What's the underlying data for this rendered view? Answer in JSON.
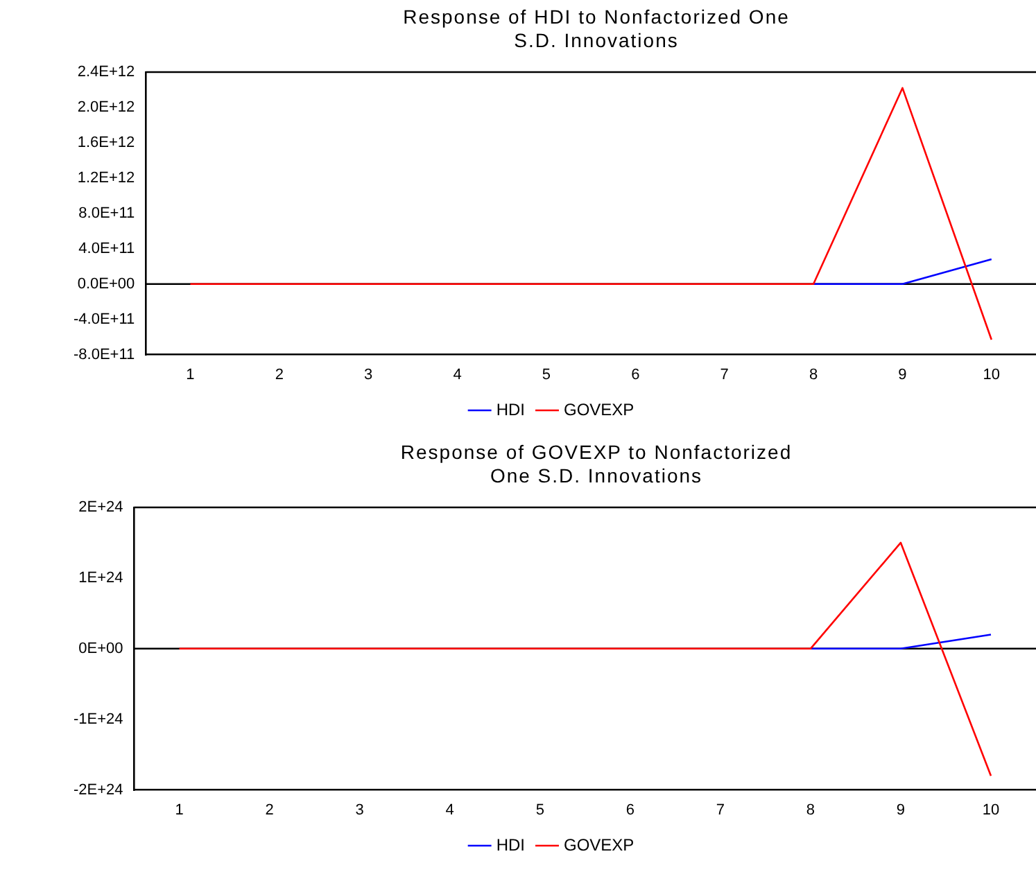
{
  "chart_data": [
    {
      "type": "line",
      "title": "Response of HDI to Nonfactorized One S.D. Innovations",
      "categories": [
        "1",
        "2",
        "3",
        "4",
        "5",
        "6",
        "7",
        "8",
        "9",
        "10"
      ],
      "series": [
        {
          "name": "HDI",
          "color": "#0000ff",
          "values": [
            null,
            null,
            null,
            null,
            null,
            null,
            null,
            0,
            0,
            280000000000.0
          ]
        },
        {
          "name": "GOVEXP",
          "color": "#ff0000",
          "values": [
            0,
            0,
            0,
            0,
            0,
            0,
            0,
            0,
            2220000000000.0,
            -630000000000.0
          ]
        }
      ],
      "ylim": [
        -800000000000.0,
        2400000000000.0
      ],
      "yticks": [
        {
          "value": -800000000000.0,
          "label": "-8.0E+11"
        },
        {
          "value": -400000000000.0,
          "label": "-4.0E+11"
        },
        {
          "value": 0,
          "label": "0.0E+00"
        },
        {
          "value": 400000000000.0,
          "label": "4.0E+11"
        },
        {
          "value": 800000000000.0,
          "label": "8.0E+11"
        },
        {
          "value": 1200000000000.0,
          "label": "1.2E+12"
        },
        {
          "value": 1600000000000.0,
          "label": "1.6E+12"
        },
        {
          "value": 2000000000000.0,
          "label": "2.0E+12"
        },
        {
          "value": 2400000000000.0,
          "label": "2.4E+12"
        }
      ],
      "ref_lines": [
        {
          "axis": "y",
          "value": 0,
          "color": "#000000"
        }
      ],
      "grid": false,
      "legend": "bottom",
      "marker": "none",
      "line_style": "solid"
    },
    {
      "type": "line",
      "title": "Response of GOVEXP to Nonfactorized One S.D. Innovations",
      "categories": [
        "1",
        "2",
        "3",
        "4",
        "5",
        "6",
        "7",
        "8",
        "9",
        "10"
      ],
      "series": [
        {
          "name": "HDI",
          "color": "#0000ff",
          "values": [
            null,
            null,
            null,
            null,
            null,
            null,
            null,
            0,
            0,
            2e+23
          ]
        },
        {
          "name": "GOVEXP",
          "color": "#ff0000",
          "values": [
            0,
            0,
            0,
            0,
            0,
            0,
            0,
            0,
            1.5e+24,
            -1.8e+24
          ]
        }
      ],
      "ylim": [
        -2e+24,
        2e+24
      ],
      "yticks": [
        {
          "value": -2e+24,
          "label": "-2E+24"
        },
        {
          "value": -1e+24,
          "label": "-1E+24"
        },
        {
          "value": 0,
          "label": "0E+00"
        },
        {
          "value": 1e+24,
          "label": "1E+24"
        },
        {
          "value": 2e+24,
          "label": "2E+24"
        }
      ],
      "ref_lines": [
        {
          "axis": "y",
          "value": 0,
          "color": "#000000"
        }
      ],
      "grid": false,
      "legend": "bottom",
      "marker": "none",
      "line_style": "solid"
    }
  ]
}
